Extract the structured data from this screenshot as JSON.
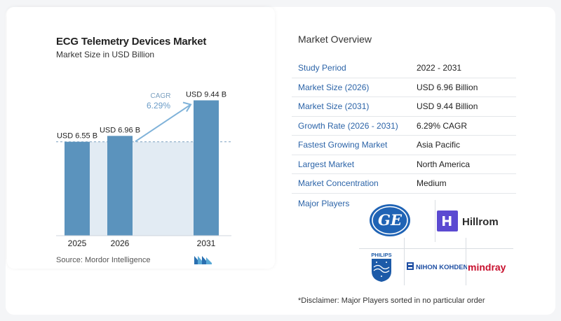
{
  "chart_data": {
    "type": "bar",
    "title": "ECG Telemetry Devices Market",
    "subtitle": "Market Size in USD Billion",
    "categories": [
      "2025",
      "2026",
      "2031"
    ],
    "values": [
      6.55,
      6.96,
      9.44
    ],
    "value_labels": [
      "USD 6.55 B",
      "USD 6.96 B",
      "USD 9.44 B"
    ],
    "ylim": [
      0,
      10
    ],
    "annotation": {
      "label": "CAGR",
      "value": "6.29%"
    },
    "bar_color": "#5b93bd",
    "reference_fill": "#e2ebf3",
    "source": "Source:  Mordor Intelligence"
  },
  "overview": {
    "title": "Market Overview",
    "rows": [
      {
        "label": "Study Period",
        "value": "2022 - 2031"
      },
      {
        "label": "Market Size (2026)",
        "value": "USD 6.96 Billion"
      },
      {
        "label": "Market Size (2031)",
        "value": "USD 9.44 Billion"
      },
      {
        "label": "Growth Rate (2026 - 2031)",
        "value": "6.29% CAGR"
      },
      {
        "label": "Fastest Growing Market",
        "value": "Asia Pacific"
      },
      {
        "label": "Largest Market",
        "value": "North America"
      },
      {
        "label": "Market Concentration",
        "value": "Medium"
      }
    ]
  },
  "players": {
    "title": "Major Players",
    "logos": [
      {
        "name": "GE",
        "icon": "ge-logo"
      },
      {
        "name": "Hillrom",
        "icon": "hillrom-logo"
      },
      {
        "name": "PHILIPS",
        "icon": "philips-logo"
      },
      {
        "name": "NIHON KOHDEN",
        "icon": "nihon-kohden-logo"
      },
      {
        "name": "mindray",
        "icon": "mindray-logo"
      }
    ]
  },
  "disclaimer": "*Disclaimer: Major Players sorted in no particular order"
}
